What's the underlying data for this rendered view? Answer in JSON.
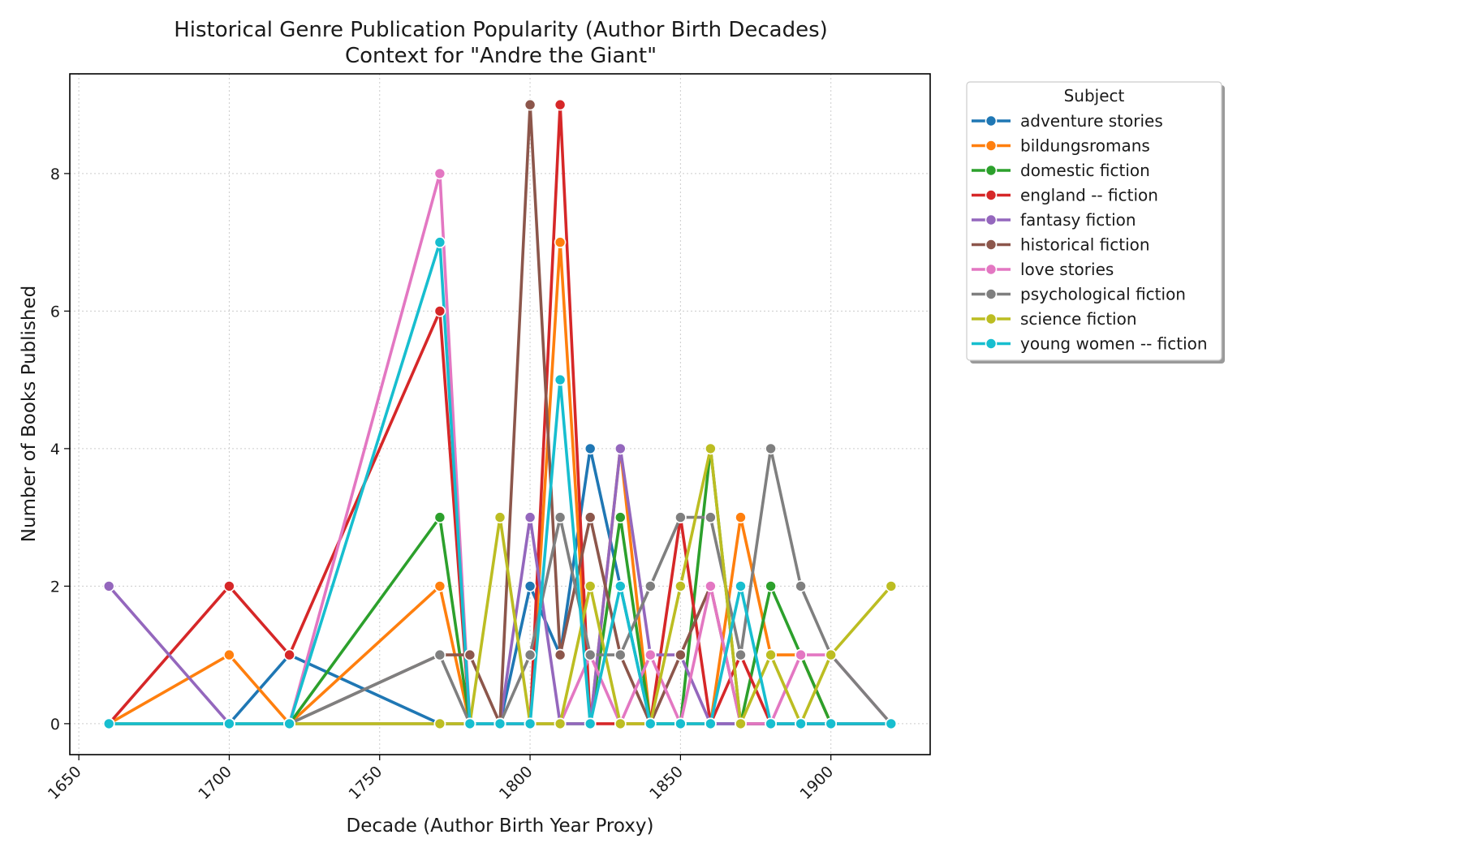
{
  "chart_data": {
    "type": "line",
    "title": "Historical Genre Publication Popularity (Author Birth Decades)",
    "subtitle": "Context for \"Andre the Giant\"",
    "xlabel": "Decade (Author Birth Year Proxy)",
    "ylabel": "Number of Books Published",
    "xlim": [
      1647,
      1933
    ],
    "ylim": [
      -0.45,
      9.45
    ],
    "x_ticks": [
      1650,
      1700,
      1750,
      1800,
      1850,
      1900
    ],
    "y_ticks": [
      0,
      2,
      4,
      6,
      8
    ],
    "grid": true,
    "legend": {
      "title": "Subject",
      "placement": "outside-right-top"
    },
    "x": [
      1660,
      1700,
      1720,
      1770,
      1780,
      1790,
      1800,
      1810,
      1820,
      1830,
      1840,
      1850,
      1860,
      1870,
      1880,
      1890,
      1900,
      1920
    ],
    "series": [
      {
        "name": "adventure stories",
        "color": "#1f77b4",
        "values": [
          0,
          0,
          1,
          0,
          0,
          0,
          2,
          1,
          4,
          2,
          0,
          0,
          0,
          0,
          0,
          0,
          0,
          0
        ]
      },
      {
        "name": "bildungsromans",
        "color": "#ff7f0e",
        "values": [
          0,
          1,
          0,
          2,
          0,
          0,
          0,
          7,
          0,
          4,
          0,
          0,
          0,
          3,
          1,
          1,
          0,
          0
        ]
      },
      {
        "name": "domestic fiction",
        "color": "#2ca02c",
        "values": [
          0,
          0,
          0,
          3,
          0,
          0,
          0,
          0,
          0,
          3,
          0,
          0,
          4,
          0,
          2,
          1,
          0,
          0
        ]
      },
      {
        "name": "england -- fiction",
        "color": "#d62728",
        "values": [
          0,
          2,
          1,
          6,
          0,
          0,
          0,
          9,
          0,
          0,
          0,
          3,
          0,
          1,
          0,
          0,
          0,
          0
        ]
      },
      {
        "name": "fantasy fiction",
        "color": "#9467bd",
        "values": [
          2,
          0,
          0,
          0,
          0,
          0,
          3,
          0,
          0,
          4,
          1,
          1,
          0,
          0,
          0,
          0,
          0,
          0
        ]
      },
      {
        "name": "historical fiction",
        "color": "#8c564b",
        "values": [
          0,
          0,
          0,
          1,
          1,
          0,
          9,
          1,
          3,
          1,
          0,
          1,
          2,
          0,
          0,
          0,
          0,
          0
        ]
      },
      {
        "name": "love stories",
        "color": "#e377c2",
        "values": [
          0,
          0,
          0,
          8,
          0,
          0,
          0,
          0,
          1,
          0,
          1,
          0,
          2,
          0,
          0,
          1,
          1,
          0
        ]
      },
      {
        "name": "psychological fiction",
        "color": "#7f7f7f",
        "values": [
          0,
          0,
          0,
          1,
          0,
          0,
          1,
          3,
          1,
          1,
          2,
          3,
          3,
          1,
          4,
          2,
          1,
          0
        ]
      },
      {
        "name": "science fiction",
        "color": "#bcbd22",
        "values": [
          0,
          0,
          0,
          0,
          0,
          3,
          0,
          0,
          2,
          0,
          0,
          2,
          4,
          0,
          1,
          0,
          1,
          2
        ]
      },
      {
        "name": "young women -- fiction",
        "color": "#17becf",
        "values": [
          0,
          0,
          0,
          7,
          0,
          0,
          0,
          5,
          0,
          2,
          0,
          0,
          0,
          2,
          0,
          0,
          0,
          0
        ]
      }
    ]
  }
}
